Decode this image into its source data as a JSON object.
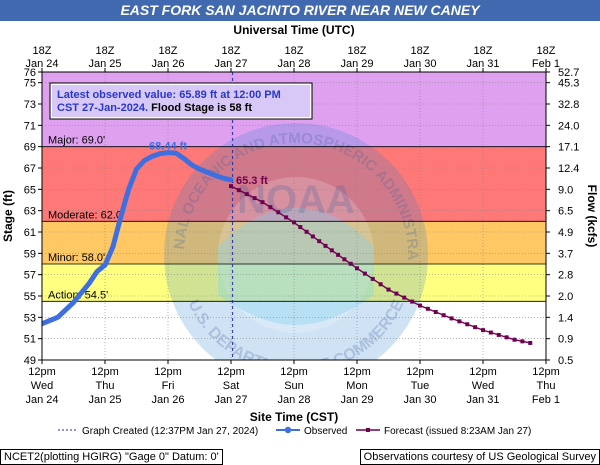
{
  "banner_title": "EAST FORK SAN JACINTO RIVER NEAR NEW CANEY",
  "top_axis_label": "Universal Time (UTC)",
  "footer": {
    "left": "NCET2(plotting HGIRG) \"Gage 0\" Datum: 0'",
    "right": "Observations courtesy of US Geological Survey"
  },
  "chart_data": {
    "type": "line",
    "title": "EAST FORK SAN JACINTO RIVER NEAR NEW CANEY",
    "xlabel": "Site Time (CST)",
    "ylabel": "Stage (ft)",
    "y2label": "Flow (kcfs)",
    "x2label": "Universal Time (UTC)",
    "ylim": [
      49,
      76
    ],
    "xlim": [
      "2024-01-24T12:00",
      "2024-02-01T12:00"
    ],
    "yticks": [
      49,
      51,
      53,
      55,
      57,
      59,
      61,
      63,
      65,
      67,
      69,
      71,
      73,
      75,
      76
    ],
    "xticks_bottom": [
      {
        "x": "2024-01-24T12:00",
        "l1": "12pm",
        "l2": "Wed",
        "l3": "Jan 24"
      },
      {
        "x": "2024-01-25T12:00",
        "l1": "12pm",
        "l2": "Thu",
        "l3": "Jan 25"
      },
      {
        "x": "2024-01-26T12:00",
        "l1": "12pm",
        "l2": "Fri",
        "l3": "Jan 26"
      },
      {
        "x": "2024-01-27T12:00",
        "l1": "12pm",
        "l2": "Sat",
        "l3": "Jan 27"
      },
      {
        "x": "2024-01-28T12:00",
        "l1": "12pm",
        "l2": "Sun",
        "l3": "Jan 28"
      },
      {
        "x": "2024-01-29T12:00",
        "l1": "12pm",
        "l2": "Mon",
        "l3": "Jan 29"
      },
      {
        "x": "2024-01-30T12:00",
        "l1": "12pm",
        "l2": "Tue",
        "l3": "Jan 30"
      },
      {
        "x": "2024-01-31T12:00",
        "l1": "12pm",
        "l2": "Wed",
        "l3": "Jan 31"
      },
      {
        "x": "2024-02-01T12:00",
        "l1": "12pm",
        "l2": "Thu",
        "l3": "Feb 1"
      }
    ],
    "xticks_top": [
      {
        "x": "2024-01-24T12:00",
        "l1": "18Z",
        "l2": "Jan 24"
      },
      {
        "x": "2024-01-25T12:00",
        "l1": "18Z",
        "l2": "Jan 25"
      },
      {
        "x": "2024-01-26T12:00",
        "l1": "18Z",
        "l2": "Jan 26"
      },
      {
        "x": "2024-01-27T12:00",
        "l1": "18Z",
        "l2": "Jan 27"
      },
      {
        "x": "2024-01-28T12:00",
        "l1": "18Z",
        "l2": "Jan 28"
      },
      {
        "x": "2024-01-29T12:00",
        "l1": "18Z",
        "l2": "Jan 29"
      },
      {
        "x": "2024-01-30T12:00",
        "l1": "18Z",
        "l2": "Jan 30"
      },
      {
        "x": "2024-01-31T12:00",
        "l1": "18Z",
        "l2": "Jan 31"
      },
      {
        "x": "2024-02-01T12:00",
        "l1": "18Z",
        "l2": "Feb 1"
      }
    ],
    "flow_ticks": [
      {
        "stage": 49.0,
        "label": "0.5"
      },
      {
        "stage": 51.0,
        "label": "0.9"
      },
      {
        "stage": 53.0,
        "label": "1.4"
      },
      {
        "stage": 55.0,
        "label": "2.0"
      },
      {
        "stage": 57.0,
        "label": "2.8"
      },
      {
        "stage": 59.0,
        "label": "3.7"
      },
      {
        "stage": 61.0,
        "label": "4.9"
      },
      {
        "stage": 63.0,
        "label": "6.5"
      },
      {
        "stage": 65.0,
        "label": "9.0"
      },
      {
        "stage": 67.0,
        "label": "12.4"
      },
      {
        "stage": 69.0,
        "label": "17.1"
      },
      {
        "stage": 71.0,
        "label": "24.0"
      },
      {
        "stage": 73.0,
        "label": "32.8"
      },
      {
        "stage": 75.0,
        "label": "45.3"
      },
      {
        "stage": 76.0,
        "label": "52.7"
      }
    ],
    "flood_categories": [
      {
        "name": "Action",
        "label": "Action: 54.5'",
        "from": 49,
        "to": 54.5,
        "color": "#ffffff"
      },
      {
        "name": "Minor",
        "label": "Minor: 58.0'",
        "from": 54.5,
        "to": 58,
        "color": "#ffff80"
      },
      {
        "name": "Moderate",
        "label": "Moderate: 62.0'",
        "from": 58,
        "to": 62,
        "color": "#ffc864"
      },
      {
        "name": "Major",
        "label": "Major: 69.0'",
        "from": 62,
        "to": 69,
        "color": "#ff7878"
      },
      {
        "name": "Record",
        "label": "",
        "from": 69,
        "to": 76,
        "color": "#e0a0f0"
      }
    ],
    "created_marker": {
      "x": "2024-01-27T12:37"
    },
    "info_box": {
      "line1": "Latest observed value: 65.89 ft at 12:00 PM",
      "line2_a": "CST 27-Jan-2024.",
      "line2_b": " Flood Stage is 58 ft"
    },
    "annotations": [
      {
        "text": "68.44 ft",
        "x": "2024-01-26T12:00",
        "y": 68.44,
        "color": "#3e6fe0"
      },
      {
        "text": "65.3 ft",
        "x": "2024-01-27T12:00",
        "y": 65.3,
        "color": "#700050"
      }
    ],
    "series": [
      {
        "name": "Observed",
        "color": "#3e6fe0",
        "points": [
          [
            "2024-01-24T12:00",
            52.4
          ],
          [
            "2024-01-24T18:00",
            53.0
          ],
          [
            "2024-01-25T00:00",
            54.4
          ],
          [
            "2024-01-25T06:00",
            56.2
          ],
          [
            "2024-01-25T09:00",
            57.3
          ],
          [
            "2024-01-25T12:00",
            57.9
          ],
          [
            "2024-01-25T15:00",
            59.6
          ],
          [
            "2024-01-25T18:00",
            62.4
          ],
          [
            "2024-01-25T21:00",
            65.0
          ],
          [
            "2024-01-26T00:00",
            66.9
          ],
          [
            "2024-01-26T03:00",
            67.7
          ],
          [
            "2024-01-26T06:00",
            68.1
          ],
          [
            "2024-01-26T09:00",
            68.35
          ],
          [
            "2024-01-26T12:00",
            68.44
          ],
          [
            "2024-01-26T15:00",
            68.4
          ],
          [
            "2024-01-26T18:00",
            67.9
          ],
          [
            "2024-01-26T21:00",
            67.3
          ],
          [
            "2024-01-27T00:00",
            66.9
          ],
          [
            "2024-01-27T03:00",
            66.6
          ],
          [
            "2024-01-27T06:00",
            66.3
          ],
          [
            "2024-01-27T09:00",
            66.05
          ],
          [
            "2024-01-27T12:00",
            65.89
          ]
        ]
      },
      {
        "name": "Forecast",
        "color": "#700050",
        "points": [
          [
            "2024-01-27T12:00",
            65.3
          ],
          [
            "2024-01-28T00:00",
            63.8
          ],
          [
            "2024-01-28T12:00",
            61.9
          ],
          [
            "2024-01-29T00:00",
            59.7
          ],
          [
            "2024-01-29T12:00",
            57.6
          ],
          [
            "2024-01-30T00:00",
            55.6
          ],
          [
            "2024-01-30T12:00",
            54.1
          ],
          [
            "2024-01-31T00:00",
            52.9
          ],
          [
            "2024-01-31T12:00",
            51.8
          ],
          [
            "2024-02-01T00:00",
            50.9
          ],
          [
            "2024-02-01T06:00",
            50.6
          ]
        ]
      }
    ],
    "legend": {
      "created": "Graph Created (12:37PM Jan 27, 2024)",
      "observed": "Observed",
      "forecast": "Forecast (issued 8:23AM Jan 27)"
    },
    "watermark": [
      "NATIONAL OCEANIC AND ATMOSPHERIC ADMINISTRATION",
      "NOAA",
      "U.S. DEPARTMENT OF COMMERCE"
    ]
  }
}
